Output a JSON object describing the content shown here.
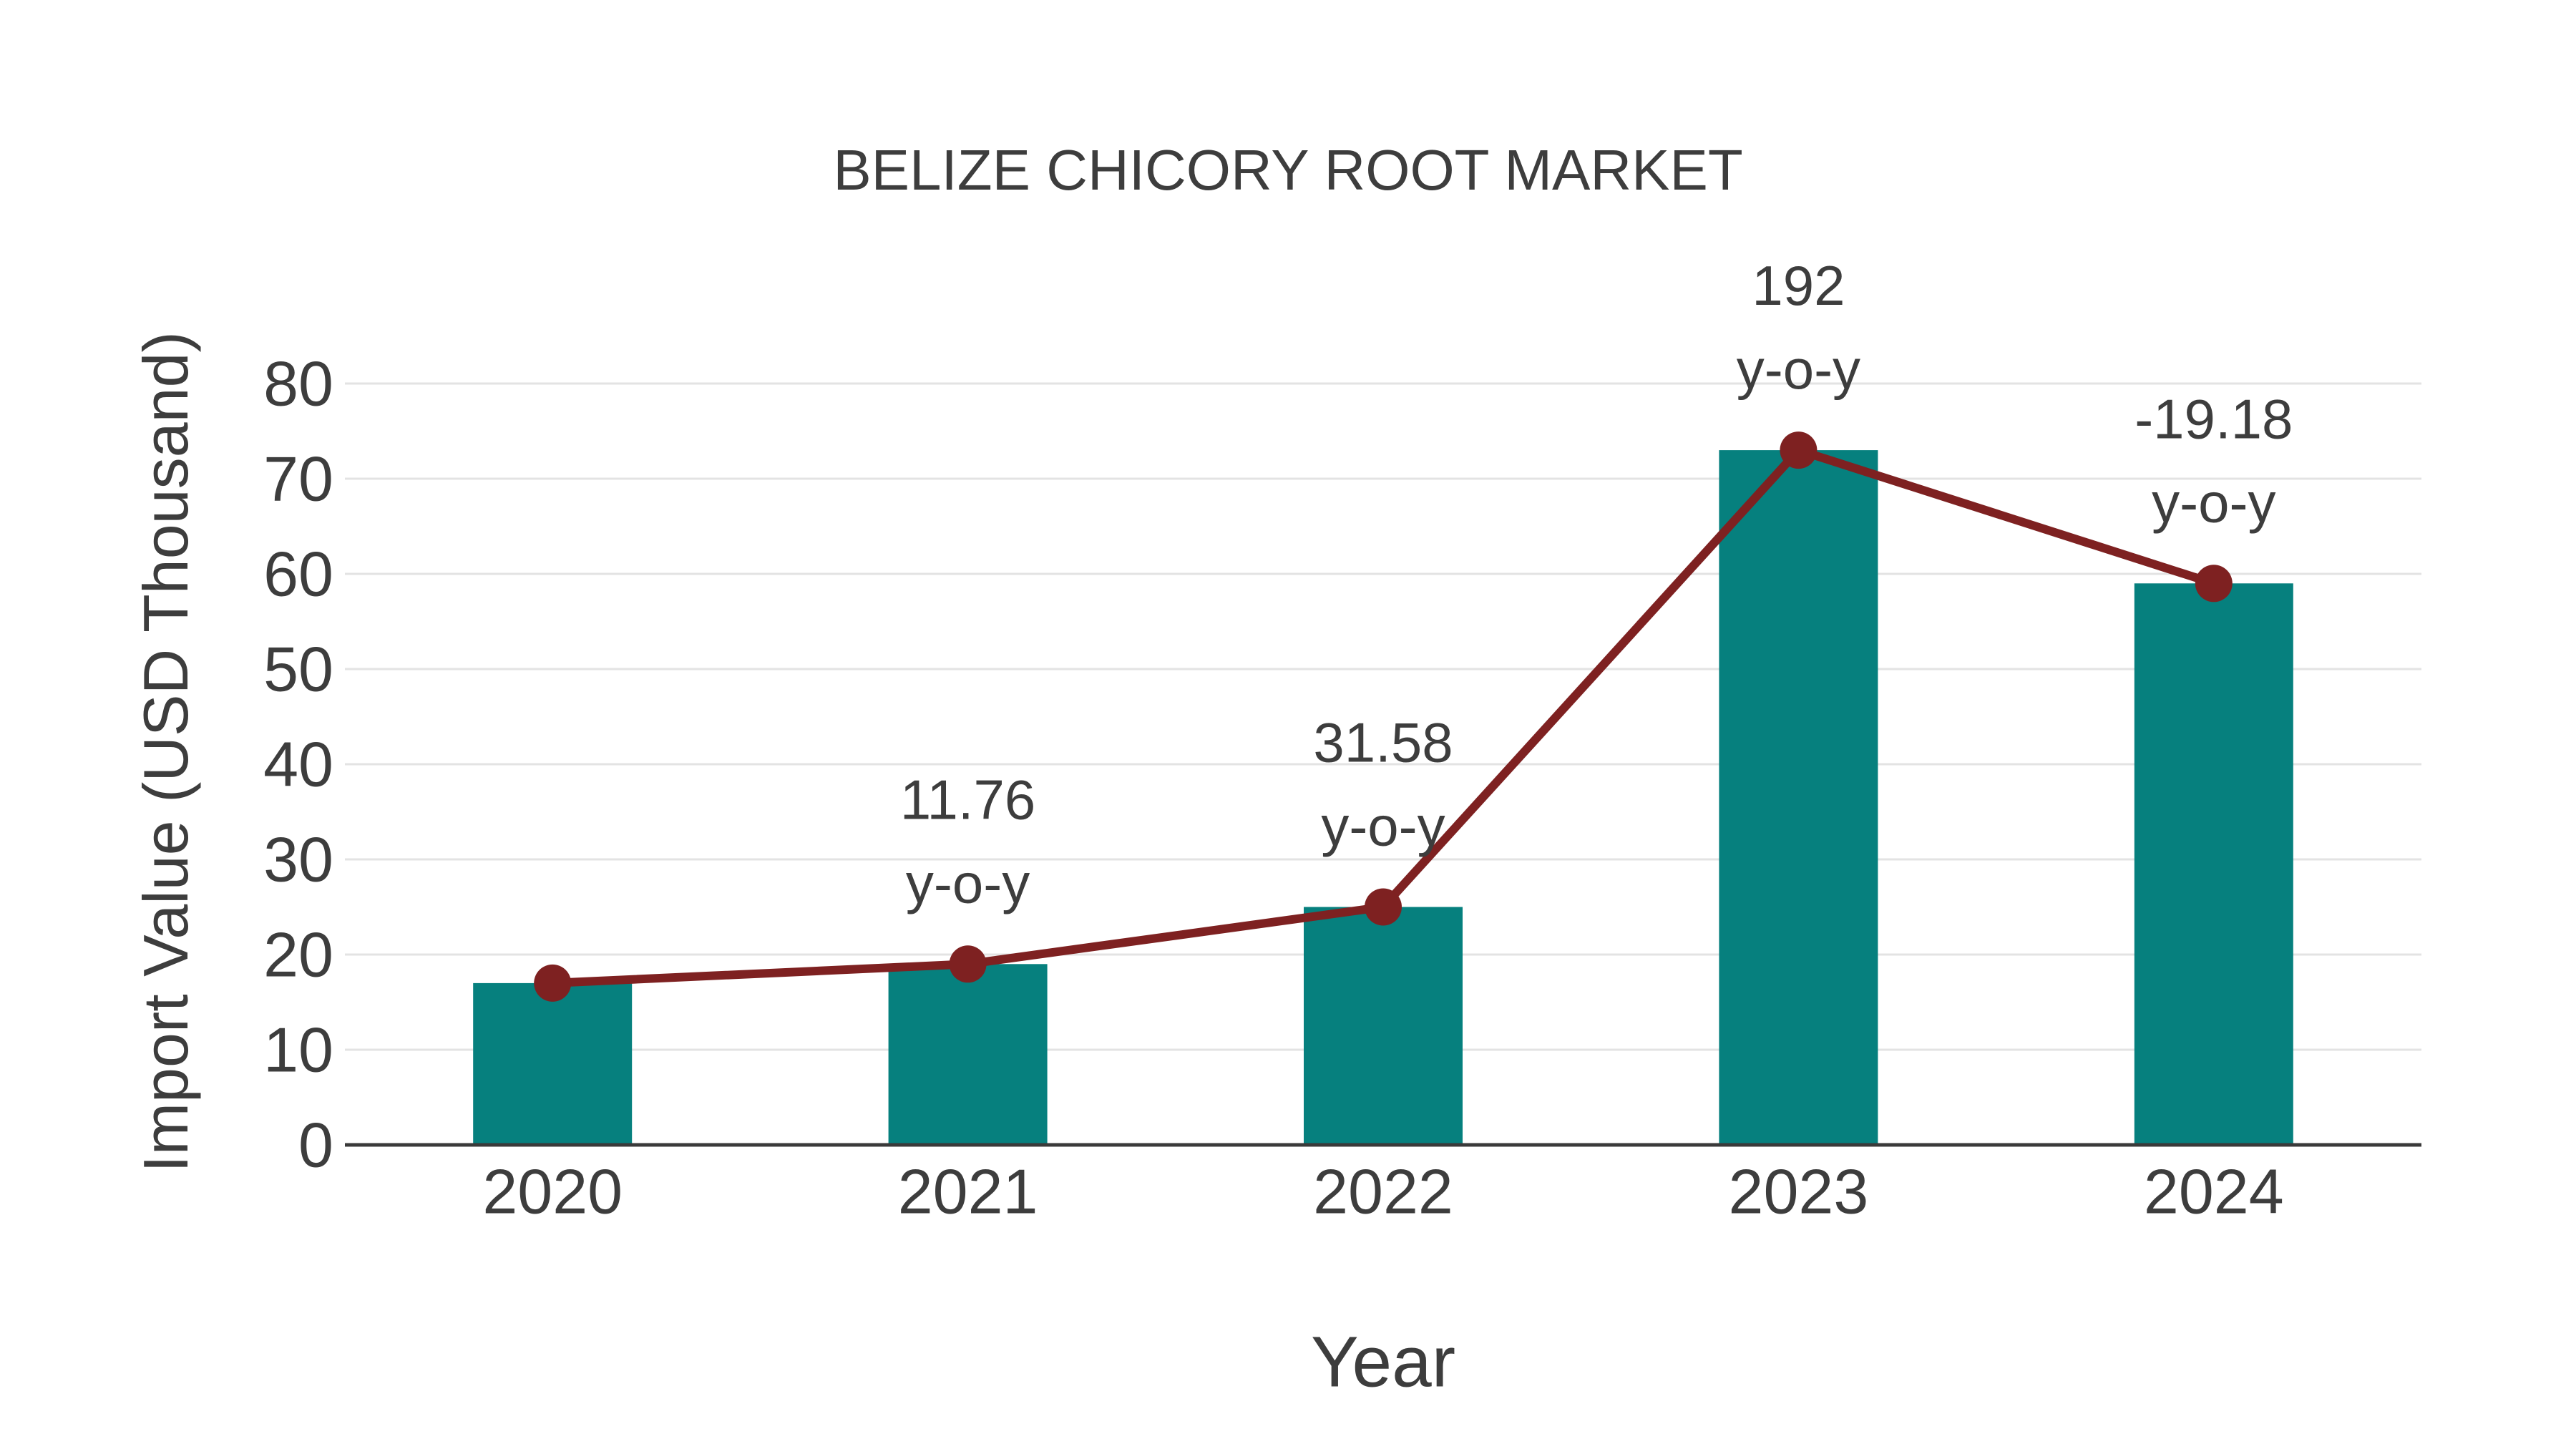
{
  "colors": {
    "bar": "#06807E",
    "line": "#7E2121",
    "marker": "#7E2121",
    "text": "#3D3D3D",
    "grid": "#E3E3E3",
    "axis": "#3A3A3A",
    "background": "#FFFFFF"
  },
  "chart_data": {
    "type": "bar",
    "title": "BELIZE CHICORY ROOT MARKET",
    "xlabel": "Year",
    "ylabel": "Import Value (USD Thousand)",
    "categories": [
      "2020",
      "2021",
      "2022",
      "2023",
      "2024"
    ],
    "series": [
      {
        "name": "Import Value (USD Thousand)",
        "type": "bar",
        "values": [
          17,
          19,
          25,
          73,
          59
        ]
      },
      {
        "name": "Import Value trend line",
        "type": "line",
        "values": [
          17,
          19,
          25,
          73,
          59
        ]
      }
    ],
    "annotations": [
      {
        "category": "2021",
        "value_label": "11.76",
        "suffix_label": "y-o-y"
      },
      {
        "category": "2022",
        "value_label": "31.58",
        "suffix_label": "y-o-y"
      },
      {
        "category": "2023",
        "value_label": "192",
        "suffix_label": "y-o-y"
      },
      {
        "category": "2024",
        "value_label": "-19.18",
        "suffix_label": "y-o-y"
      }
    ],
    "yticks": [
      "0",
      "10",
      "20",
      "30",
      "40",
      "50",
      "60",
      "70",
      "80"
    ],
    "ylim": [
      0,
      80
    ],
    "grid": true,
    "legend_position": "none"
  }
}
